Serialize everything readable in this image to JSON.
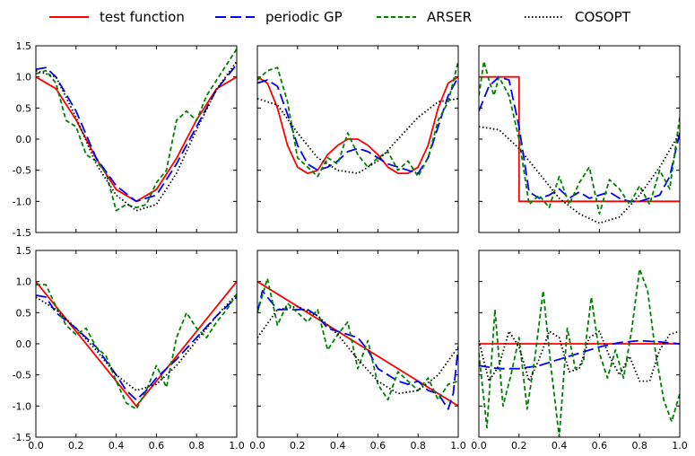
{
  "legend": [
    {
      "label": "test function",
      "color": "#ff0000",
      "style": "solid"
    },
    {
      "label": "periodic GP",
      "color": "#0000ff",
      "style": "dashed"
    },
    {
      "label": "ARSER",
      "color": "#008000",
      "style": "short-dashed"
    },
    {
      "label": "COSOPT",
      "color": "#000000",
      "style": "dotted"
    }
  ],
  "chart_data": [
    {
      "type": "line",
      "panel": "top-left",
      "xlim": [
        0,
        1
      ],
      "ylim": [
        -1.5,
        1.5
      ],
      "y_ticks": [
        "1.5",
        "1.0",
        "0.5",
        "0.0",
        "-0.5",
        "-1.0",
        "-1.5"
      ],
      "x_ticks": [],
      "series": [
        {
          "name": "test function",
          "x": [
            0,
            0.1,
            0.2,
            0.3,
            0.4,
            0.5,
            0.6,
            0.7,
            0.8,
            0.9,
            1.0
          ],
          "values": [
            1,
            0.81,
            0.31,
            -0.31,
            -0.81,
            -1,
            -0.81,
            -0.31,
            0.31,
            0.81,
            1
          ]
        },
        {
          "name": "periodic GP",
          "x": [
            0,
            0.05,
            0.1,
            0.2,
            0.3,
            0.4,
            0.5,
            0.6,
            0.7,
            0.8,
            0.9,
            1.0
          ],
          "values": [
            1.12,
            1.15,
            1.0,
            0.45,
            -0.3,
            -0.75,
            -1.0,
            -0.9,
            -0.4,
            0.2,
            0.8,
            1.2
          ]
        },
        {
          "name": "ARSER",
          "x": [
            0,
            0.05,
            0.1,
            0.15,
            0.2,
            0.25,
            0.3,
            0.35,
            0.4,
            0.45,
            0.5,
            0.55,
            0.6,
            0.65,
            0.7,
            0.75,
            0.8,
            0.85,
            0.9,
            0.95,
            1.0
          ],
          "values": [
            1.05,
            1.1,
            0.9,
            0.3,
            0.2,
            -0.25,
            -0.35,
            -0.55,
            -1.15,
            -1.05,
            -1.1,
            -1.05,
            -0.7,
            -0.5,
            0.3,
            0.45,
            0.3,
            0.7,
            0.95,
            1.2,
            1.45
          ]
        },
        {
          "name": "COSOPT",
          "x": [
            0,
            0.1,
            0.2,
            0.3,
            0.4,
            0.5,
            0.6,
            0.7,
            0.8,
            0.9,
            1.0
          ],
          "values": [
            1.1,
            1.0,
            0.35,
            -0.4,
            -0.9,
            -1.15,
            -1.05,
            -0.55,
            0.15,
            0.8,
            1.25
          ]
        }
      ]
    },
    {
      "type": "line",
      "panel": "top-middle",
      "xlim": [
        0,
        1
      ],
      "ylim": [
        -1.5,
        1.5
      ],
      "y_ticks": [],
      "x_ticks": [],
      "series": [
        {
          "name": "test function",
          "x": [
            0,
            0.05,
            0.1,
            0.15,
            0.2,
            0.25,
            0.3,
            0.35,
            0.4,
            0.45,
            0.5,
            0.55,
            0.6,
            0.65,
            0.7,
            0.75,
            0.8,
            0.85,
            0.9,
            0.95,
            1.0
          ],
          "values": [
            1.0,
            0.9,
            0.5,
            -0.1,
            -0.45,
            -0.55,
            -0.5,
            -0.25,
            -0.1,
            0.0,
            0.0,
            -0.1,
            -0.25,
            -0.45,
            -0.55,
            -0.55,
            -0.45,
            -0.1,
            0.5,
            0.9,
            1.0
          ]
        },
        {
          "name": "periodic GP",
          "x": [
            0,
            0.05,
            0.1,
            0.15,
            0.2,
            0.25,
            0.3,
            0.35,
            0.4,
            0.45,
            0.5,
            0.55,
            0.6,
            0.65,
            0.7,
            0.75,
            0.8,
            0.85,
            0.9,
            0.95,
            1.0
          ],
          "values": [
            0.9,
            0.95,
            0.85,
            0.4,
            -0.1,
            -0.4,
            -0.5,
            -0.45,
            -0.35,
            -0.2,
            -0.15,
            -0.2,
            -0.3,
            -0.4,
            -0.45,
            -0.5,
            -0.55,
            -0.3,
            0.2,
            0.7,
            1.0
          ]
        },
        {
          "name": "ARSER",
          "x": [
            0,
            0.05,
            0.1,
            0.15,
            0.2,
            0.25,
            0.3,
            0.35,
            0.4,
            0.45,
            0.5,
            0.55,
            0.6,
            0.65,
            0.7,
            0.75,
            0.8,
            0.85,
            0.9,
            0.95,
            1.0
          ],
          "values": [
            0.95,
            1.1,
            1.15,
            0.6,
            -0.3,
            -0.45,
            -0.6,
            -0.3,
            -0.4,
            0.1,
            -0.25,
            -0.45,
            -0.3,
            -0.2,
            -0.5,
            -0.35,
            -0.6,
            -0.3,
            0.3,
            0.6,
            1.25
          ]
        },
        {
          "name": "COSOPT",
          "x": [
            0,
            0.1,
            0.2,
            0.3,
            0.4,
            0.5,
            0.6,
            0.7,
            0.8,
            0.9,
            1.0
          ],
          "values": [
            0.65,
            0.55,
            0.1,
            -0.3,
            -0.5,
            -0.55,
            -0.35,
            0.0,
            0.35,
            0.6,
            0.65
          ]
        }
      ]
    },
    {
      "type": "line",
      "panel": "top-right",
      "xlim": [
        0,
        1
      ],
      "ylim": [
        -1.5,
        1.5
      ],
      "y_ticks": [],
      "x_ticks": [],
      "series": [
        {
          "name": "test function",
          "x": [
            0,
            0.2,
            0.2,
            1.0
          ],
          "values": [
            1,
            1,
            -1,
            -1
          ]
        },
        {
          "name": "periodic GP",
          "x": [
            0,
            0.05,
            0.1,
            0.15,
            0.2,
            0.25,
            0.3,
            0.35,
            0.4,
            0.45,
            0.5,
            0.55,
            0.6,
            0.65,
            0.7,
            0.75,
            0.8,
            0.85,
            0.9,
            0.95,
            1.0
          ],
          "values": [
            0.45,
            0.85,
            1.0,
            0.95,
            0.2,
            -0.85,
            -0.95,
            -0.9,
            -0.8,
            -0.95,
            -0.85,
            -0.95,
            -0.9,
            -0.85,
            -0.95,
            -1.0,
            -1.0,
            -0.95,
            -0.9,
            -0.6,
            0.1
          ]
        },
        {
          "name": "ARSER",
          "x": [
            0,
            0.025,
            0.05,
            0.075,
            0.1,
            0.15,
            0.2,
            0.25,
            0.3,
            0.35,
            0.4,
            0.45,
            0.5,
            0.55,
            0.6,
            0.65,
            0.7,
            0.75,
            0.8,
            0.85,
            0.9,
            0.95,
            1.0
          ],
          "values": [
            0.7,
            1.25,
            0.95,
            0.7,
            1.0,
            0.7,
            0.0,
            -1.05,
            -0.9,
            -1.1,
            -0.6,
            -1.05,
            -0.7,
            -0.45,
            -1.2,
            -0.65,
            -0.8,
            -1.05,
            -0.75,
            -1.05,
            -0.5,
            -0.8,
            0.35
          ]
        },
        {
          "name": "COSOPT",
          "x": [
            0,
            0.1,
            0.2,
            0.3,
            0.4,
            0.5,
            0.6,
            0.7,
            0.8,
            0.9,
            1.0
          ],
          "values": [
            0.2,
            0.15,
            -0.15,
            -0.55,
            -0.95,
            -1.2,
            -1.35,
            -1.25,
            -0.9,
            -0.45,
            0.1
          ]
        }
      ]
    },
    {
      "type": "line",
      "panel": "bottom-left",
      "xlim": [
        0,
        1
      ],
      "ylim": [
        -1.5,
        1.5
      ],
      "y_ticks": [
        "1.5",
        "1.0",
        "0.5",
        "0.0",
        "-0.5",
        "-1.0",
        "-1.5"
      ],
      "x_ticks": [
        "0.0",
        "0.2",
        "0.4",
        "0.6",
        "0.8",
        "1.0"
      ],
      "series": [
        {
          "name": "test function",
          "x": [
            0,
            0.5,
            1.0
          ],
          "values": [
            1,
            -1,
            1
          ]
        },
        {
          "name": "periodic GP",
          "x": [
            0,
            0.05,
            0.1,
            0.2,
            0.3,
            0.4,
            0.45,
            0.5,
            0.55,
            0.6,
            0.7,
            0.8,
            0.9,
            1.0
          ],
          "values": [
            0.78,
            0.75,
            0.5,
            0.25,
            -0.05,
            -0.5,
            -0.75,
            -0.9,
            -0.75,
            -0.55,
            -0.25,
            0.1,
            0.45,
            0.75
          ]
        },
        {
          "name": "ARSER",
          "x": [
            0,
            0.05,
            0.1,
            0.15,
            0.2,
            0.25,
            0.3,
            0.35,
            0.4,
            0.45,
            0.5,
            0.55,
            0.6,
            0.65,
            0.7,
            0.75,
            0.8,
            0.85,
            0.9,
            0.95,
            1.0
          ],
          "values": [
            0.95,
            0.95,
            0.6,
            0.3,
            0.15,
            0.25,
            -0.05,
            -0.2,
            -0.6,
            -0.95,
            -1.05,
            -0.75,
            -0.35,
            -0.7,
            0.1,
            0.5,
            0.25,
            0.1,
            0.35,
            0.55,
            0.8
          ]
        },
        {
          "name": "COSOPT",
          "x": [
            0,
            0.1,
            0.2,
            0.3,
            0.4,
            0.5,
            0.6,
            0.7,
            0.8,
            0.9,
            1.0
          ],
          "values": [
            0.75,
            0.55,
            0.25,
            -0.1,
            -0.5,
            -0.75,
            -0.65,
            -0.35,
            0.05,
            0.45,
            0.8
          ]
        }
      ]
    },
    {
      "type": "line",
      "panel": "bottom-middle",
      "xlim": [
        0,
        1
      ],
      "ylim": [
        -1.5,
        1.5
      ],
      "y_ticks": [],
      "x_ticks": [
        "0.0",
        "0.2",
        "0.4",
        "0.6",
        "0.8",
        "1.0"
      ],
      "series": [
        {
          "name": "test function",
          "x": [
            0,
            1.0
          ],
          "values": [
            1,
            -1
          ]
        },
        {
          "name": "periodic GP",
          "x": [
            0,
            0.025,
            0.05,
            0.1,
            0.15,
            0.2,
            0.25,
            0.3,
            0.35,
            0.4,
            0.45,
            0.5,
            0.55,
            0.6,
            0.65,
            0.7,
            0.75,
            0.8,
            0.85,
            0.9,
            0.95,
            0.975,
            1.0
          ],
          "values": [
            0.5,
            0.85,
            0.75,
            0.55,
            0.55,
            0.55,
            0.55,
            0.45,
            0.25,
            0.2,
            0.15,
            0.1,
            -0.1,
            -0.4,
            -0.5,
            -0.6,
            -0.65,
            -0.6,
            -0.75,
            -0.8,
            -1.05,
            -0.8,
            -0.05
          ]
        },
        {
          "name": "ARSER",
          "x": [
            0,
            0.05,
            0.1,
            0.15,
            0.2,
            0.25,
            0.3,
            0.35,
            0.4,
            0.45,
            0.5,
            0.55,
            0.6,
            0.65,
            0.7,
            0.75,
            0.8,
            0.85,
            0.9,
            0.95,
            1.0
          ],
          "values": [
            0.5,
            1.05,
            0.3,
            0.65,
            0.5,
            0.35,
            0.55,
            -0.1,
            0.15,
            0.35,
            -0.4,
            0.05,
            -0.65,
            -0.9,
            -0.45,
            -0.6,
            -0.75,
            -0.55,
            -0.9,
            -0.65,
            -0.6
          ]
        },
        {
          "name": "COSOPT",
          "x": [
            0,
            0.1,
            0.2,
            0.3,
            0.4,
            0.5,
            0.6,
            0.7,
            0.8,
            0.9,
            1.0
          ],
          "values": [
            0.1,
            0.55,
            0.6,
            0.45,
            0.15,
            -0.25,
            -0.6,
            -0.8,
            -0.75,
            -0.5,
            -0.05
          ]
        }
      ]
    },
    {
      "type": "line",
      "panel": "bottom-right",
      "xlim": [
        0,
        1
      ],
      "ylim": [
        -1.5,
        1.5
      ],
      "y_ticks": [],
      "x_ticks": [
        "0.0",
        "0.2",
        "0.4",
        "0.6",
        "0.8",
        "1.0"
      ],
      "series": [
        {
          "name": "test function",
          "x": [
            0,
            1.0
          ],
          "values": [
            0,
            0
          ]
        },
        {
          "name": "periodic GP",
          "x": [
            0,
            0.1,
            0.2,
            0.3,
            0.4,
            0.5,
            0.6,
            0.7,
            0.8,
            0.9,
            1.0
          ],
          "values": [
            -0.35,
            -0.4,
            -0.4,
            -0.35,
            -0.25,
            -0.15,
            -0.05,
            0.02,
            0.05,
            0.03,
            0.0
          ]
        },
        {
          "name": "ARSER",
          "x": [
            0,
            0.04,
            0.08,
            0.12,
            0.16,
            0.2,
            0.24,
            0.28,
            0.32,
            0.36,
            0.4,
            0.44,
            0.48,
            0.52,
            0.56,
            0.6,
            0.64,
            0.68,
            0.72,
            0.76,
            0.8,
            0.84,
            0.88,
            0.92,
            0.96,
            1.0
          ],
          "values": [
            -0.15,
            -1.35,
            0.55,
            -1.0,
            -0.5,
            0.1,
            -1.05,
            -0.2,
            0.85,
            -0.4,
            -1.5,
            0.25,
            -0.4,
            -0.3,
            0.75,
            -0.15,
            -0.55,
            -0.1,
            -0.55,
            0.2,
            1.2,
            0.85,
            -0.15,
            -0.9,
            -1.25,
            -0.8
          ]
        },
        {
          "name": "COSOPT",
          "x": [
            0,
            0.05,
            0.1,
            0.15,
            0.2,
            0.25,
            0.3,
            0.35,
            0.4,
            0.45,
            0.5,
            0.55,
            0.6,
            0.65,
            0.7,
            0.75,
            0.8,
            0.85,
            0.9,
            0.95,
            1.0
          ],
          "values": [
            0.05,
            -0.6,
            -0.35,
            0.2,
            -0.05,
            -0.6,
            -0.25,
            0.2,
            0.1,
            -0.45,
            -0.4,
            0.1,
            0.2,
            -0.2,
            -0.5,
            -0.2,
            -0.6,
            -0.6,
            -0.1,
            0.15,
            0.2
          ]
        }
      ]
    }
  ]
}
